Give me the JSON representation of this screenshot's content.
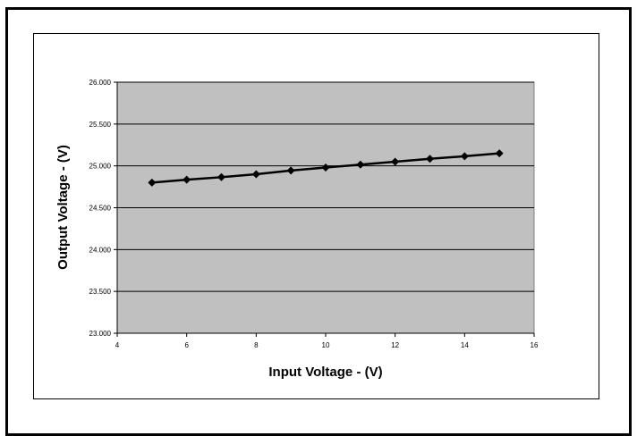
{
  "caption": "",
  "chart_data": {
    "type": "line",
    "title": "",
    "xlabel": "Input Voltage - (V)",
    "ylabel": "Output Voltage - (V)",
    "xlim": [
      4,
      16
    ],
    "ylim": [
      23.0,
      26.0
    ],
    "x_ticks": [
      4,
      6,
      8,
      10,
      12,
      14,
      16
    ],
    "x_tick_labels": [
      "4",
      "6",
      "8",
      "10",
      "12",
      "14",
      "16"
    ],
    "y_ticks": [
      23.0,
      23.5,
      24.0,
      24.5,
      25.0,
      25.5,
      26.0
    ],
    "y_tick_labels": [
      "23.000",
      "23.500",
      "24.000",
      "24.500",
      "25.000",
      "25.500",
      "26.000"
    ],
    "grid": "horizontal",
    "legend": "none",
    "plot_background": "#c0c0c0",
    "line_color": "#000000",
    "marker": "diamond",
    "series": [
      {
        "x": [
          5,
          6,
          7,
          8,
          9,
          10,
          11,
          12,
          13,
          14,
          15
        ],
        "y": [
          24.8,
          24.835,
          24.865,
          24.9,
          24.945,
          24.98,
          25.015,
          25.05,
          25.085,
          25.115,
          25.15
        ]
      }
    ]
  }
}
